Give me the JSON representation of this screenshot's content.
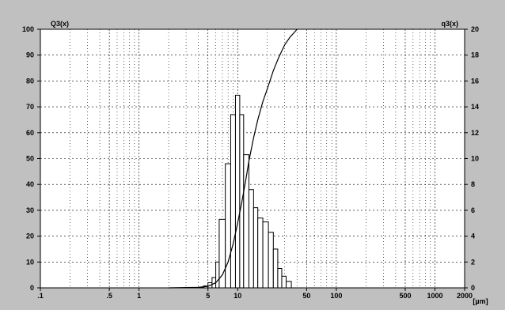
{
  "chart_data": {
    "type": "bar",
    "x_scale": "log",
    "xlim": [
      0.1,
      2000
    ],
    "x_tick_labels": [
      ".1",
      ".5",
      "1",
      "5",
      "10",
      "50",
      "100",
      "500",
      "1000",
      "2000"
    ],
    "x_unit_label": "[µm]",
    "left_axis": {
      "label": "Q3(x)",
      "ylim": [
        0,
        100
      ],
      "tick_labels": [
        "0",
        "10",
        "20",
        "30",
        "40",
        "50",
        "60",
        "70",
        "80",
        "90",
        "100"
      ]
    },
    "right_axis": {
      "label": "q3(x)",
      "ylim": [
        0,
        20
      ],
      "tick_labels": [
        "0",
        "2",
        "4",
        "6",
        "8",
        "10",
        "12",
        "14",
        "16",
        "18",
        "20"
      ]
    },
    "grid": true,
    "series": [
      {
        "type": "histogram",
        "axis": "right",
        "bin_edges": [
          4.0,
          4.5,
          5.0,
          5.5,
          6.0,
          6.5,
          7.5,
          8.5,
          9.5,
          10.5,
          11.5,
          13.0,
          14.5,
          16.0,
          18.0,
          20.5,
          23.0,
          25.5,
          28.0,
          31.0,
          35.0,
          38.0
        ],
        "values": [
          0.05,
          0.15,
          0.4,
          0.8,
          2.0,
          5.3,
          9.6,
          13.4,
          14.9,
          13.4,
          10.3,
          7.6,
          6.2,
          5.4,
          5.1,
          4.3,
          3.0,
          1.5,
          0.9,
          0.5,
          0.0
        ]
      },
      {
        "type": "line",
        "axis": "left",
        "x": [
          2.0,
          4.0,
          5.0,
          6.0,
          7.0,
          8.0,
          9.0,
          10.0,
          11.0,
          12.0,
          13.0,
          14.5,
          16.0,
          18.0,
          20.0,
          23.0,
          26.0,
          30.0,
          34.0,
          38.0,
          40.0
        ],
        "y": [
          0,
          0.2,
          0.6,
          2,
          5,
          10,
          17,
          25,
          33,
          41,
          49,
          58,
          65,
          72,
          77,
          84,
          89,
          94,
          97,
          99,
          100
        ]
      }
    ]
  }
}
